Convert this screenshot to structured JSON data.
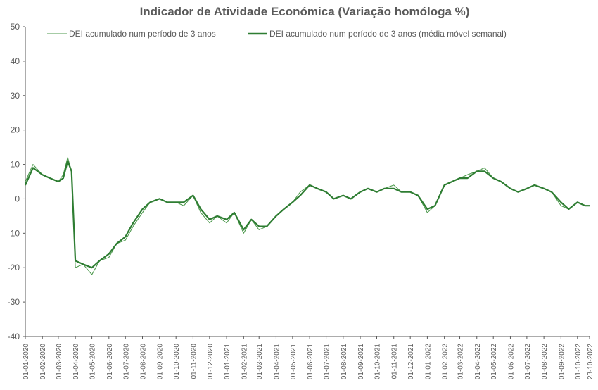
{
  "chart_data": {
    "type": "line",
    "title": "Indicador de Atividade Económica (Variação homóloga %)",
    "ylim": [
      -40,
      50
    ],
    "yticks": [
      50,
      40,
      30,
      20,
      10,
      0,
      -10,
      -20,
      -30,
      -40
    ],
    "x_tick_labels": [
      "01-01-2020",
      "01-02-2020",
      "01-03-2020",
      "01-04-2020",
      "01-05-2020",
      "01-06-2020",
      "01-07-2020",
      "01-08-2020",
      "01-09-2020",
      "01-10-2020",
      "01-11-2020",
      "01-12-2020",
      "01-01-2021",
      "01-02-2021",
      "01-03-2021",
      "01-04-2021",
      "01-05-2021",
      "01-06-2021",
      "01-07-2021",
      "01-08-2021",
      "01-09-2021",
      "01-10-2021",
      "01-11-2021",
      "01-12-2021",
      "01-01-2022",
      "01-02-2022",
      "01-03-2022",
      "01-04-2022",
      "01-05-2022",
      "01-06-2022",
      "01-07-2022",
      "01-08-2022",
      "01-09-2022",
      "01-10-2022",
      "23-10-2022"
    ],
    "legend_position": "top",
    "colors": {
      "daily": "#4e9a4e",
      "weekly": "#2e7d32",
      "axis": "#595959"
    },
    "x_dates": [
      "2020-01-01",
      "2020-01-15",
      "2020-02-01",
      "2020-02-15",
      "2020-03-01",
      "2020-03-10",
      "2020-03-18",
      "2020-03-25",
      "2020-04-01",
      "2020-04-15",
      "2020-05-01",
      "2020-05-15",
      "2020-06-01",
      "2020-06-15",
      "2020-07-01",
      "2020-07-15",
      "2020-08-01",
      "2020-08-15",
      "2020-09-01",
      "2020-09-15",
      "2020-10-01",
      "2020-10-15",
      "2020-11-01",
      "2020-11-15",
      "2020-12-01",
      "2020-12-15",
      "2021-01-01",
      "2021-01-15",
      "2021-02-01",
      "2021-02-15",
      "2021-03-01",
      "2021-03-15",
      "2021-04-01",
      "2021-04-15",
      "2021-05-01",
      "2021-05-15",
      "2021-06-01",
      "2021-06-15",
      "2021-07-01",
      "2021-07-15",
      "2021-08-01",
      "2021-08-15",
      "2021-09-01",
      "2021-09-15",
      "2021-10-01",
      "2021-10-15",
      "2021-11-01",
      "2021-11-15",
      "2021-12-01",
      "2021-12-15",
      "2022-01-01",
      "2022-01-15",
      "2022-02-01",
      "2022-02-15",
      "2022-03-01",
      "2022-03-15",
      "2022-04-01",
      "2022-04-15",
      "2022-05-01",
      "2022-05-15",
      "2022-06-01",
      "2022-06-15",
      "2022-07-01",
      "2022-07-15",
      "2022-08-01",
      "2022-08-15",
      "2022-09-01",
      "2022-09-15",
      "2022-10-01",
      "2022-10-15",
      "2022-10-23"
    ],
    "series": [
      {
        "name": "DEI acumulado num período de 3 anos",
        "values": [
          5,
          10,
          7,
          6,
          5,
          7,
          12,
          8,
          -20,
          -19,
          -22,
          -18,
          -17,
          -13,
          -12,
          -8,
          -4,
          -1,
          0,
          -1,
          -1,
          -2,
          1,
          -4,
          -7,
          -5,
          -7,
          -4,
          -10,
          -6,
          -9,
          -8,
          -5,
          -3,
          -1,
          2,
          4,
          3,
          2,
          0,
          1,
          0,
          2,
          3,
          2,
          3,
          4,
          2,
          2,
          1,
          -4,
          -2,
          4,
          5,
          6,
          7,
          8,
          9,
          6,
          5,
          3,
          2,
          3,
          4,
          3,
          2,
          -2,
          -3,
          -1,
          -2,
          -2
        ]
      },
      {
        "name": "DEI acumulado num período de 3 anos (média móvel semanal)",
        "values": [
          4,
          9,
          7,
          6,
          5,
          6,
          11,
          8,
          -18,
          -19,
          -20,
          -18,
          -16,
          -13,
          -11,
          -7,
          -3,
          -1,
          0,
          -1,
          -1,
          -1,
          1,
          -3,
          -6,
          -5,
          -6,
          -4,
          -9,
          -6,
          -8,
          -8,
          -5,
          -3,
          -1,
          1,
          4,
          3,
          2,
          0,
          1,
          0,
          2,
          3,
          2,
          3,
          3,
          2,
          2,
          1,
          -3,
          -2,
          4,
          5,
          6,
          6,
          8,
          8,
          6,
          5,
          3,
          2,
          3,
          4,
          3,
          2,
          -1,
          -3,
          -1,
          -2,
          -2
        ]
      }
    ]
  }
}
